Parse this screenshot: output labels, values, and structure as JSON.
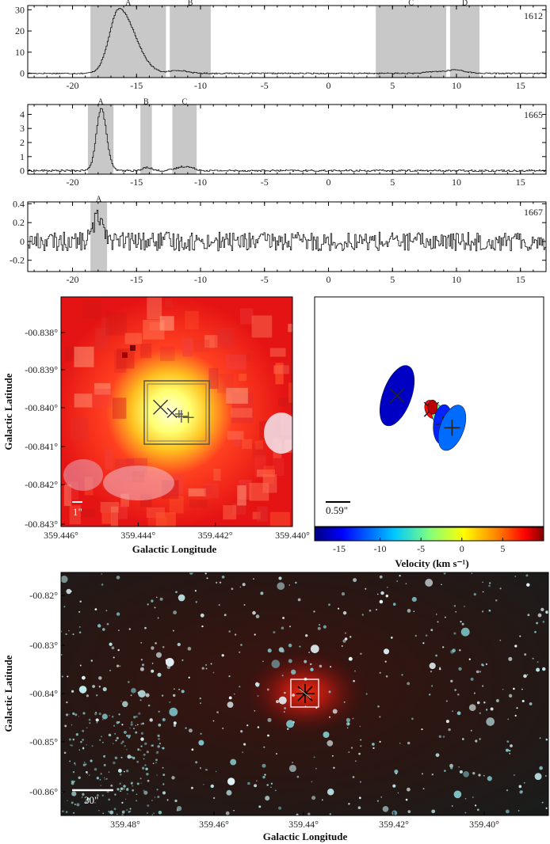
{
  "chart_data": [
    {
      "type": "line",
      "id": "spec-1612",
      "label": "1612",
      "xlim": [
        -23.5,
        17
      ],
      "ylim": [
        -2,
        32
      ],
      "xticks": [
        -20,
        -15,
        -10,
        -5,
        0,
        5,
        10,
        15
      ],
      "yticks": [
        0,
        10,
        20,
        30
      ],
      "regions": [
        {
          "name": "A",
          "x0": -18.6,
          "x1": -12.7
        },
        {
          "name": "B",
          "x0": -12.4,
          "x1": -9.2
        },
        {
          "name": "C",
          "x0": 3.7,
          "x1": 9.2
        },
        {
          "name": "D",
          "x0": 9.5,
          "x1": 11.8
        }
      ],
      "peaks": [
        {
          "center": -16.4,
          "amp": 30.5,
          "width": 0.75,
          "tail": 1.6
        },
        {
          "center": -11.8,
          "amp": 1.4,
          "width": 0.6,
          "tail": 0.4
        },
        {
          "center": 8.4,
          "amp": 0.9,
          "width": 0.7,
          "tail": 0.5
        },
        {
          "center": 9.9,
          "amp": 1.5,
          "width": 0.5,
          "tail": 0.8
        }
      ],
      "noise": 0.25
    },
    {
      "type": "line",
      "id": "spec-1665",
      "label": "1665",
      "xlim": [
        -23.5,
        17
      ],
      "ylim": [
        -0.25,
        4.7
      ],
      "xticks": [
        -20,
        -15,
        -10,
        -5,
        0,
        5,
        10,
        15
      ],
      "yticks": [
        0,
        1,
        2,
        3,
        4
      ],
      "regions": [
        {
          "name": "A",
          "x0": -18.8,
          "x1": -16.8
        },
        {
          "name": "B",
          "x0": -14.7,
          "x1": -13.8
        },
        {
          "name": "C",
          "x0": -12.2,
          "x1": -10.3
        }
      ],
      "peaks": [
        {
          "center": -17.8,
          "amp": 4.4,
          "width": 0.38,
          "tail": 0.1
        },
        {
          "center": -14.2,
          "amp": 0.25,
          "width": 0.3,
          "tail": 0.1
        },
        {
          "center": -11.3,
          "amp": 0.3,
          "width": 0.6,
          "tail": 0.2
        }
      ],
      "noise": 0.06
    },
    {
      "type": "line",
      "id": "spec-1667",
      "label": "1667",
      "xlim": [
        -23.5,
        17
      ],
      "ylim": [
        -0.32,
        0.42
      ],
      "xticks": [
        -20,
        -15,
        -10,
        -5,
        0,
        5,
        10,
        15
      ],
      "yticks": [
        -0.2,
        0,
        0.2,
        0.4
      ],
      "regions": [
        {
          "name": "A",
          "x0": -18.6,
          "x1": -17.3
        }
      ],
      "peaks": [
        {
          "center": -18.0,
          "amp": 0.27,
          "width": 0.4,
          "tail": 0.1
        }
      ],
      "noise": 0.1
    },
    {
      "type": "image",
      "id": "zoom-image",
      "xlabel": "Galactic Longitude",
      "ylabel": "Galactic Latitude",
      "xticks": [
        "359.446°",
        "359.444°",
        "359.442°",
        "359.440°"
      ],
      "yticks": [
        "-00.838°",
        "-00.839°",
        "-00.840°",
        "-00.841°",
        "-00.842°",
        "-00.843°"
      ],
      "scale_bar": "1\"",
      "markers": [
        {
          "kind": "x",
          "u": 0.43,
          "v": 0.48,
          "size": 9
        },
        {
          "kind": "x",
          "u": 0.48,
          "v": 0.505,
          "size": 6
        },
        {
          "kind": "plus",
          "u": 0.52,
          "v": 0.52,
          "size": 8
        },
        {
          "kind": "plus",
          "u": 0.55,
          "v": 0.525,
          "size": 7
        },
        {
          "kind": "plus",
          "u": 0.51,
          "v": 0.51,
          "size": 5
        }
      ]
    },
    {
      "type": "scatter",
      "id": "velocity-map",
      "xlabel": "Velocity (km s⁻¹)",
      "scale_bar": "0.59\"",
      "colorbar": {
        "vmin": -18,
        "vmax": 10,
        "ticks": [
          -15,
          -10,
          -5,
          0,
          5
        ]
      },
      "ellipses": [
        {
          "velocity": -16.2,
          "u": 0.36,
          "v": 0.43,
          "rx": 18,
          "ry": 40,
          "rot": 20,
          "marker": "x"
        },
        {
          "velocity": 7.5,
          "u": 0.51,
          "v": 0.49,
          "rx": 8,
          "ry": 12,
          "rot": -20,
          "marker": "x"
        },
        {
          "velocity": -4.5,
          "u": 0.55,
          "v": 0.53,
          "rx": 9,
          "ry": 20,
          "rot": -25,
          "marker": "x"
        },
        {
          "velocity": -13.5,
          "u": 0.56,
          "v": 0.555,
          "rx": 12,
          "ry": 25,
          "rot": 5,
          "marker": "plus"
        },
        {
          "velocity": -11.2,
          "u": 0.6,
          "v": 0.57,
          "rx": 15,
          "ry": 30,
          "rot": 20,
          "marker": "plus"
        },
        {
          "velocity": 9.0,
          "u": 0.515,
          "v": 0.48,
          "rx": 6,
          "ry": 9,
          "rot": 0,
          "marker": "none"
        }
      ]
    },
    {
      "type": "image",
      "id": "wide-field",
      "xlabel": "Galactic Longitude",
      "ylabel": "Galactic Latitude",
      "xticks": [
        "359.48°",
        "359.46°",
        "359.44°",
        "359.42°",
        "359.40°"
      ],
      "yticks": [
        "-00.82°",
        "-00.83°",
        "-00.84°",
        "-00.85°",
        "-00.86°"
      ],
      "scale_bar": "30\""
    }
  ]
}
